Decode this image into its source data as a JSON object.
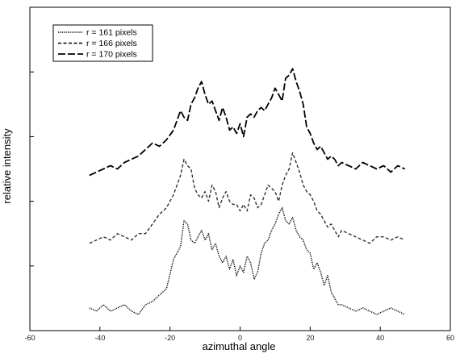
{
  "chart_data": {
    "type": "line",
    "xlabel": "azimuthal angle",
    "ylabel": "relative intensity",
    "xlim": [
      -60,
      60
    ],
    "x_ticks": [
      -60,
      -40,
      -20,
      0,
      20,
      40,
      60
    ],
    "ylim": [
      0,
      1
    ],
    "y_ticks_labeled": false,
    "grid": false,
    "legend_position": "top-left",
    "series": [
      {
        "name": "r = 161 pixels",
        "dash": "dotted",
        "x": [
          -43,
          -41,
          -39,
          -37,
          -35,
          -33,
          -31,
          -29,
          -27,
          -25,
          -23,
          -21,
          -19,
          -17,
          -16,
          -15,
          -14,
          -13,
          -12,
          -11,
          -10,
          -9,
          -8,
          -7,
          -6,
          -5,
          -4,
          -3,
          -2,
          -1,
          0,
          1,
          2,
          3,
          4,
          5,
          6,
          7,
          8,
          9,
          10,
          11,
          12,
          13,
          14,
          15,
          16,
          17,
          18,
          19,
          20,
          21,
          22,
          23,
          24,
          25,
          26,
          27,
          28,
          29,
          31,
          33,
          35,
          37,
          39,
          41,
          43,
          45,
          47
        ],
        "y": [
          0.07,
          0.06,
          0.08,
          0.06,
          0.07,
          0.08,
          0.06,
          0.05,
          0.08,
          0.09,
          0.11,
          0.13,
          0.22,
          0.26,
          0.34,
          0.33,
          0.28,
          0.27,
          0.29,
          0.31,
          0.28,
          0.3,
          0.25,
          0.27,
          0.23,
          0.21,
          0.23,
          0.19,
          0.22,
          0.17,
          0.2,
          0.18,
          0.23,
          0.21,
          0.16,
          0.18,
          0.24,
          0.27,
          0.28,
          0.31,
          0.33,
          0.36,
          0.38,
          0.34,
          0.33,
          0.35,
          0.31,
          0.29,
          0.28,
          0.25,
          0.24,
          0.19,
          0.21,
          0.18,
          0.14,
          0.17,
          0.12,
          0.1,
          0.08,
          0.08,
          0.07,
          0.06,
          0.07,
          0.06,
          0.05,
          0.06,
          0.07,
          0.06,
          0.05
        ]
      },
      {
        "name": "r = 166 pixels",
        "dash": "short-dash",
        "x": [
          -43,
          -41,
          -39,
          -37,
          -35,
          -33,
          -31,
          -29,
          -27,
          -25,
          -23,
          -21,
          -19,
          -17,
          -16,
          -15,
          -14,
          -13,
          -12,
          -11,
          -10,
          -9,
          -8,
          -7,
          -6,
          -5,
          -4,
          -3,
          -2,
          -1,
          0,
          1,
          2,
          3,
          4,
          5,
          6,
          7,
          8,
          9,
          10,
          11,
          12,
          13,
          14,
          15,
          16,
          17,
          18,
          19,
          20,
          21,
          22,
          23,
          24,
          25,
          26,
          27,
          28,
          29,
          31,
          33,
          35,
          37,
          39,
          41,
          43,
          45,
          47
        ],
        "y": [
          0.27,
          0.28,
          0.29,
          0.28,
          0.3,
          0.29,
          0.28,
          0.3,
          0.3,
          0.33,
          0.36,
          0.38,
          0.42,
          0.48,
          0.53,
          0.51,
          0.5,
          0.44,
          0.42,
          0.41,
          0.43,
          0.4,
          0.45,
          0.43,
          0.38,
          0.41,
          0.43,
          0.4,
          0.39,
          0.39,
          0.37,
          0.39,
          0.37,
          0.42,
          0.41,
          0.38,
          0.39,
          0.42,
          0.45,
          0.44,
          0.43,
          0.4,
          0.45,
          0.48,
          0.5,
          0.55,
          0.52,
          0.49,
          0.45,
          0.43,
          0.42,
          0.4,
          0.37,
          0.36,
          0.34,
          0.32,
          0.33,
          0.31,
          0.29,
          0.31,
          0.3,
          0.29,
          0.28,
          0.27,
          0.29,
          0.29,
          0.28,
          0.29,
          0.28
        ]
      },
      {
        "name": "r = 170 pixels",
        "dash": "long-dash",
        "x": [
          -43,
          -41,
          -39,
          -37,
          -35,
          -33,
          -31,
          -29,
          -27,
          -25,
          -23,
          -21,
          -19,
          -17,
          -16,
          -15,
          -14,
          -13,
          -12,
          -11,
          -10,
          -9,
          -8,
          -7,
          -6,
          -5,
          -4,
          -3,
          -2,
          -1,
          0,
          1,
          2,
          3,
          4,
          5,
          6,
          7,
          8,
          9,
          10,
          11,
          12,
          13,
          14,
          15,
          16,
          17,
          18,
          19,
          20,
          21,
          22,
          23,
          24,
          25,
          26,
          27,
          28,
          29,
          31,
          33,
          35,
          37,
          39,
          41,
          43,
          45,
          47
        ],
        "y": [
          0.48,
          0.49,
          0.5,
          0.51,
          0.5,
          0.52,
          0.53,
          0.54,
          0.56,
          0.58,
          0.57,
          0.59,
          0.62,
          0.68,
          0.66,
          0.65,
          0.7,
          0.72,
          0.75,
          0.77,
          0.73,
          0.7,
          0.71,
          0.68,
          0.65,
          0.69,
          0.66,
          0.62,
          0.63,
          0.61,
          0.64,
          0.6,
          0.66,
          0.67,
          0.66,
          0.68,
          0.69,
          0.68,
          0.7,
          0.72,
          0.75,
          0.73,
          0.71,
          0.78,
          0.79,
          0.81,
          0.77,
          0.74,
          0.7,
          0.63,
          0.61,
          0.58,
          0.56,
          0.57,
          0.55,
          0.53,
          0.54,
          0.53,
          0.51,
          0.52,
          0.51,
          0.5,
          0.52,
          0.51,
          0.5,
          0.51,
          0.49,
          0.51,
          0.5
        ]
      }
    ]
  }
}
